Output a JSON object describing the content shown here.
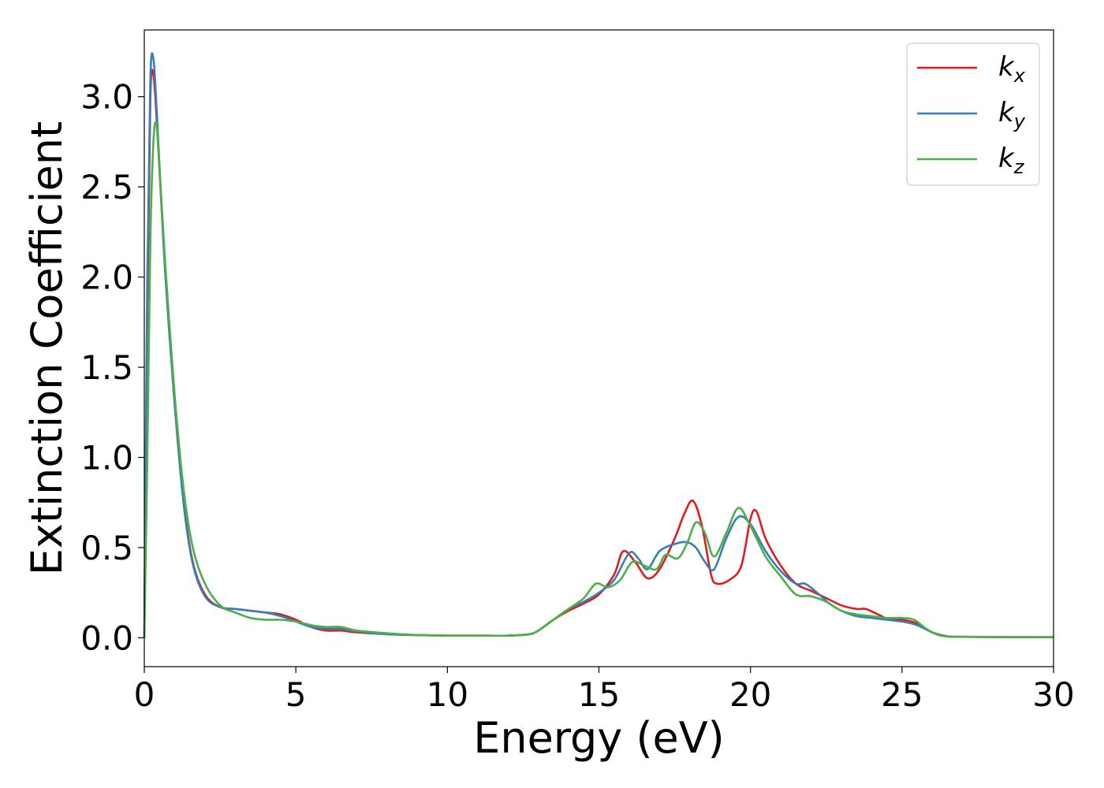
{
  "chart_data": {
    "type": "line",
    "title": "",
    "xlabel": "Energy (eV)",
    "ylabel": "Extinction Coefficient",
    "xlim": [
      0,
      30
    ],
    "ylim": [
      -0.16,
      3.37
    ],
    "xticks": [
      0,
      5,
      10,
      15,
      20,
      25,
      30
    ],
    "xtick_labels": [
      "0",
      "5",
      "10",
      "15",
      "20",
      "25",
      "30"
    ],
    "yticks": [
      0.0,
      0.5,
      1.0,
      1.5,
      2.0,
      2.5,
      3.0
    ],
    "ytick_labels": [
      "0.0",
      "0.5",
      "1.0",
      "1.5",
      "2.0",
      "2.5",
      "3.0"
    ],
    "grid": false,
    "legend_position": "top-right",
    "series": [
      {
        "name": "k",
        "subscript": "x",
        "color": "#e41a1c",
        "x": [
          0,
          0.1,
          0.2,
          0.3,
          0.4,
          0.5,
          0.7,
          1.0,
          1.3,
          1.6,
          2.0,
          2.5,
          3.0,
          3.5,
          4.0,
          4.5,
          5.0,
          5.5,
          6.0,
          6.5,
          7.0,
          8.0,
          9.0,
          10.0,
          11.0,
          12.0,
          12.7,
          13.0,
          13.5,
          14.0,
          14.5,
          15.0,
          15.5,
          15.8,
          16.2,
          16.6,
          17.0,
          17.5,
          17.8,
          18.1,
          18.4,
          18.7,
          18.9,
          19.3,
          19.7,
          20.0,
          20.2,
          20.5,
          21.0,
          21.5,
          22.0,
          22.5,
          23.0,
          23.5,
          23.8,
          24.2,
          24.6,
          25.0,
          25.5,
          26.0,
          26.5,
          27.0,
          28.0,
          30.0
        ],
        "y": [
          0.0,
          1.8,
          3.0,
          3.12,
          2.9,
          2.6,
          2.0,
          1.3,
          0.75,
          0.42,
          0.24,
          0.17,
          0.16,
          0.15,
          0.14,
          0.13,
          0.1,
          0.06,
          0.04,
          0.04,
          0.03,
          0.02,
          0.015,
          0.012,
          0.012,
          0.012,
          0.02,
          0.04,
          0.1,
          0.15,
          0.19,
          0.24,
          0.35,
          0.48,
          0.42,
          0.33,
          0.38,
          0.55,
          0.68,
          0.76,
          0.62,
          0.35,
          0.3,
          0.32,
          0.4,
          0.66,
          0.7,
          0.55,
          0.4,
          0.3,
          0.26,
          0.22,
          0.18,
          0.16,
          0.16,
          0.13,
          0.1,
          0.1,
          0.08,
          0.03,
          0.008,
          0.005,
          0.004,
          0.003
        ]
      },
      {
        "name": "k",
        "subscript": "y",
        "color": "#377eb8",
        "x": [
          0,
          0.1,
          0.2,
          0.3,
          0.4,
          0.5,
          0.7,
          1.0,
          1.3,
          1.6,
          2.0,
          2.5,
          3.0,
          3.5,
          4.0,
          4.5,
          5.0,
          5.5,
          6.0,
          6.5,
          7.0,
          8.0,
          9.0,
          10.0,
          11.0,
          12.0,
          12.7,
          13.0,
          13.5,
          14.0,
          14.5,
          15.0,
          15.5,
          16.0,
          16.3,
          16.6,
          17.0,
          17.5,
          17.9,
          18.2,
          18.5,
          18.8,
          19.2,
          19.6,
          20.0,
          20.5,
          21.0,
          21.5,
          21.8,
          22.2,
          22.6,
          23.0,
          23.5,
          24.0,
          24.5,
          25.0,
          25.5,
          26.0,
          26.5,
          27.0,
          28.0,
          30.0
        ],
        "y": [
          0.0,
          2.0,
          3.1,
          3.21,
          2.95,
          2.62,
          2.0,
          1.3,
          0.74,
          0.41,
          0.23,
          0.17,
          0.16,
          0.15,
          0.14,
          0.12,
          0.09,
          0.06,
          0.05,
          0.05,
          0.035,
          0.02,
          0.015,
          0.012,
          0.012,
          0.012,
          0.02,
          0.04,
          0.1,
          0.16,
          0.2,
          0.25,
          0.32,
          0.47,
          0.44,
          0.38,
          0.48,
          0.52,
          0.53,
          0.5,
          0.42,
          0.38,
          0.55,
          0.67,
          0.63,
          0.48,
          0.37,
          0.3,
          0.3,
          0.25,
          0.19,
          0.15,
          0.12,
          0.11,
          0.1,
          0.09,
          0.07,
          0.03,
          0.008,
          0.005,
          0.004,
          0.003
        ]
      },
      {
        "name": "k",
        "subscript": "z",
        "color": "#4daf4a",
        "x": [
          0,
          0.1,
          0.2,
          0.3,
          0.4,
          0.5,
          0.7,
          1.0,
          1.3,
          1.6,
          2.0,
          2.5,
          3.0,
          3.5,
          4.0,
          4.5,
          5.0,
          5.5,
          6.0,
          6.5,
          7.0,
          8.0,
          9.0,
          10.0,
          11.0,
          12.0,
          12.7,
          13.0,
          13.5,
          14.0,
          14.5,
          14.9,
          15.3,
          15.7,
          16.1,
          16.5,
          16.9,
          17.2,
          17.6,
          17.9,
          18.2,
          18.5,
          18.8,
          19.2,
          19.6,
          20.0,
          20.5,
          21.0,
          21.5,
          22.0,
          22.5,
          23.0,
          23.5,
          24.0,
          24.5,
          25.0,
          25.4,
          25.8,
          26.2,
          26.6,
          27.0,
          28.0,
          30.0
        ],
        "y": [
          0.0,
          1.0,
          2.2,
          2.75,
          2.85,
          2.6,
          2.05,
          1.35,
          0.82,
          0.5,
          0.3,
          0.18,
          0.14,
          0.11,
          0.1,
          0.1,
          0.09,
          0.07,
          0.06,
          0.06,
          0.04,
          0.025,
          0.015,
          0.012,
          0.012,
          0.012,
          0.02,
          0.04,
          0.1,
          0.16,
          0.22,
          0.3,
          0.28,
          0.32,
          0.42,
          0.4,
          0.38,
          0.46,
          0.44,
          0.52,
          0.64,
          0.58,
          0.45,
          0.58,
          0.72,
          0.62,
          0.45,
          0.34,
          0.24,
          0.23,
          0.2,
          0.15,
          0.13,
          0.12,
          0.11,
          0.11,
          0.1,
          0.05,
          0.015,
          0.006,
          0.005,
          0.004,
          0.003
        ]
      }
    ]
  }
}
